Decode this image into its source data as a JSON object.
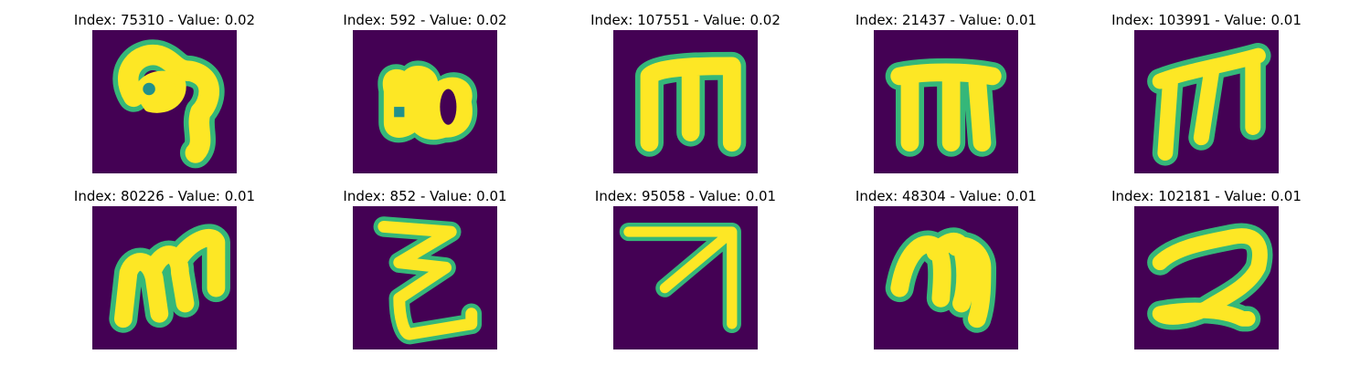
{
  "colors": {
    "background": "#440154",
    "stroke": "#fde725",
    "edge": "#35b779"
  },
  "panels": [
    {
      "index": "75310",
      "value": "0.02",
      "glyph": "curl-nine"
    },
    {
      "index": "592",
      "value": "0.02",
      "glyph": "blob-eight"
    },
    {
      "index": "107551",
      "value": "0.02",
      "glyph": "block-m"
    },
    {
      "index": "21437",
      "value": "0.01",
      "glyph": "block-m-legs"
    },
    {
      "index": "103991",
      "value": "0.01",
      "glyph": "slanted-m"
    },
    {
      "index": "80226",
      "value": "0.01",
      "glyph": "small-m"
    },
    {
      "index": "852",
      "value": "0.01",
      "glyph": "zigzag"
    },
    {
      "index": "95058",
      "value": "0.01",
      "glyph": "arrow"
    },
    {
      "index": "48304",
      "value": "0.01",
      "glyph": "script-m"
    },
    {
      "index": "102181",
      "value": "0.01",
      "glyph": "two-shape"
    }
  ]
}
